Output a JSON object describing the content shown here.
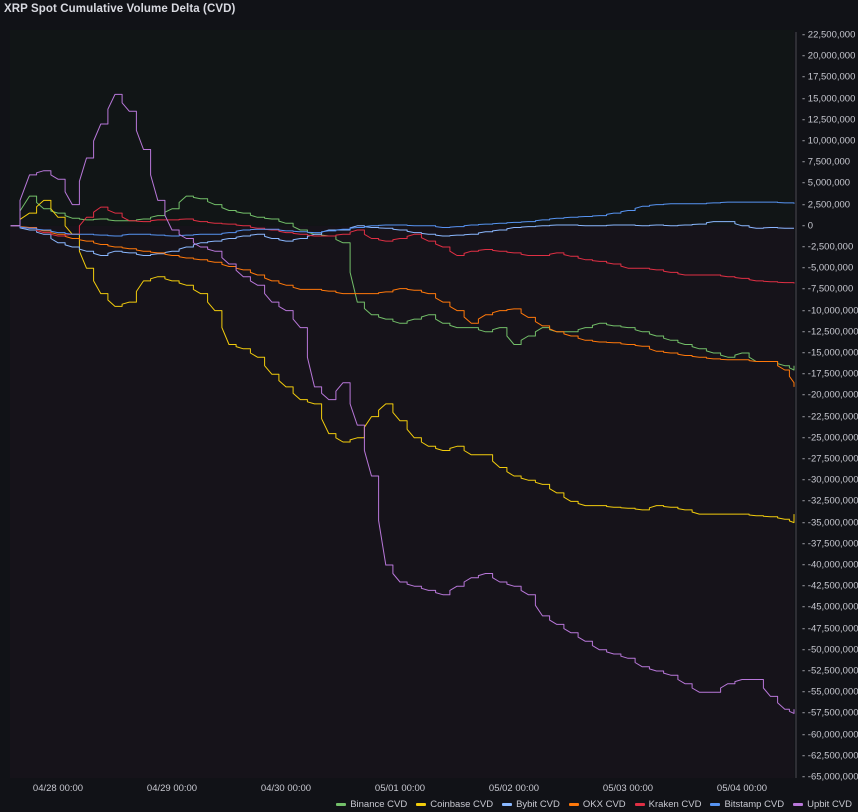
{
  "title": "XRP Spot Cumulative Volume Delta (CVD)",
  "colors": {
    "background": "#111217",
    "plot_above_zero": "#111516",
    "plot_below_zero": "#16131a",
    "axis": "#4a4b52"
  },
  "chart_data": {
    "type": "line",
    "title": "XRP Spot Cumulative Volume Delta (CVD)",
    "xlabel": "",
    "ylabel": "",
    "ylim": [
      -65000000,
      22500000
    ],
    "y_ticks": [
      "22,500,000",
      "20,000,000",
      "17,500,000",
      "15,000,000",
      "12,500,000",
      "10,000,000",
      "7,500,000",
      "5,000,000",
      "2,500,000",
      "0",
      "-2,500,000",
      "-5,000,000",
      "-7,500,000",
      "-10,000,000",
      "-12,500,000",
      "-15,000,000",
      "-17,500,000",
      "-20,000,000",
      "-22,500,000",
      "-25,000,000",
      "-27,500,000",
      "-30,000,000",
      "-32,500,000",
      "-35,000,000",
      "-37,500,000",
      "-40,000,000",
      "-42,500,000",
      "-45,000,000",
      "-47,500,000",
      "-50,000,000",
      "-52,500,000",
      "-55,000,000",
      "-57,500,000",
      "-60,000,000",
      "-62,500,000",
      "-65,000,000"
    ],
    "x_ticks": [
      "04/28 00:00",
      "04/29 00:00",
      "04/30 00:00",
      "05/01 00:00",
      "05/02 00:00",
      "05/03 00:00",
      "05/04 00:00"
    ],
    "x_unit": "hours since 04/28 00:00",
    "x": [
      -10,
      -6,
      -3,
      0,
      3,
      6,
      9,
      12,
      15,
      18,
      21,
      24,
      27,
      30,
      33,
      36,
      39,
      42,
      45,
      48,
      51,
      54,
      57,
      60,
      63,
      66,
      69,
      72,
      75,
      78,
      81,
      84,
      87,
      90,
      93,
      96,
      99,
      102,
      105,
      108,
      111,
      114,
      117,
      120,
      123,
      126,
      129,
      132,
      135,
      138,
      141,
      144,
      147,
      150,
      153,
      156,
      160
    ],
    "series": [
      {
        "name": "Binance CVD",
        "color": "#73bf69",
        "values": [
          0,
          3500000,
          2000000,
          1500000,
          900000,
          700000,
          800000,
          600000,
          600000,
          800000,
          1200000,
          2000000,
          3500000,
          3200000,
          2500000,
          1800000,
          1500000,
          1000000,
          800000,
          300000,
          -500000,
          -1000000,
          -1200000,
          -2000000,
          -9000000,
          -10500000,
          -11000000,
          -11500000,
          -11000000,
          -10500000,
          -11500000,
          -12000000,
          -12000000,
          -12500000,
          -12000000,
          -14000000,
          -13000000,
          -12000000,
          -12500000,
          -12500000,
          -12000000,
          -11500000,
          -11800000,
          -12000000,
          -12500000,
          -13000000,
          -13500000,
          -14000000,
          -14500000,
          -15000000,
          -15500000,
          -15000000,
          -16000000,
          -16000000,
          -16500000,
          -17000000,
          -16500000
        ]
      },
      {
        "name": "Coinbase CVD",
        "color": "#f2cc0c",
        "values": [
          0,
          1500000,
          3000000,
          1000000,
          -1000000,
          -5000000,
          -8000000,
          -9500000,
          -9000000,
          -6500000,
          -6000000,
          -6500000,
          -7000000,
          -8000000,
          -10000000,
          -14000000,
          -14500000,
          -15500000,
          -17500000,
          -19000000,
          -20500000,
          -21000000,
          -24500000,
          -25500000,
          -25000000,
          -22500000,
          -21000000,
          -23000000,
          -25000000,
          -26000000,
          -26500000,
          -26000000,
          -27000000,
          -27000000,
          -28500000,
          -29500000,
          -30000000,
          -30500000,
          -31500000,
          -32500000,
          -33000000,
          -33000000,
          -33200000,
          -33300000,
          -33500000,
          -33000000,
          -33200000,
          -33500000,
          -34000000,
          -34000000,
          -34000000,
          -34000000,
          -34200000,
          -34300000,
          -34600000,
          -35000000,
          -34000000
        ]
      },
      {
        "name": "Bybit CVD",
        "color": "#8ab8ff",
        "values": [
          0,
          -500000,
          -1000000,
          -2000000,
          -2500000,
          -3000000,
          -3500000,
          -3000000,
          -3200000,
          -3500000,
          -3300000,
          -3000000,
          -2500000,
          -2000000,
          -1800000,
          -1500000,
          -1200000,
          -1000000,
          -1500000,
          -1800000,
          -1500000,
          -1000000,
          -500000,
          -500000,
          0,
          -200000,
          -300000,
          -500000,
          -800000,
          -1000000,
          -1200000,
          -1100000,
          -1000000,
          -700000,
          -500000,
          -200000,
          -100000,
          0,
          100000,
          100000,
          0,
          0,
          100000,
          100000,
          0,
          100000,
          0,
          100000,
          200000,
          500000,
          500000,
          0,
          -300000,
          -200000,
          -300000,
          -300000,
          -300000
        ]
      },
      {
        "name": "OKX CVD",
        "color": "#ff780a",
        "values": [
          0,
          -200000,
          -600000,
          -1000000,
          -1500000,
          -1800000,
          -2200000,
          -2500000,
          -2700000,
          -3000000,
          -3200000,
          -3500000,
          -3800000,
          -4000000,
          -4300000,
          -4800000,
          -5200000,
          -5800000,
          -6500000,
          -7000000,
          -7500000,
          -7500000,
          -7700000,
          -8000000,
          -8000000,
          -8000000,
          -7800000,
          -7400000,
          -7600000,
          -8000000,
          -9000000,
          -10000000,
          -11500000,
          -10500000,
          -10000000,
          -9800000,
          -10800000,
          -11800000,
          -12500000,
          -13000000,
          -13500000,
          -13700000,
          -13800000,
          -14000000,
          -14200000,
          -14800000,
          -15000000,
          -15300000,
          -15500000,
          -15700000,
          -15800000,
          -15800000,
          -16000000,
          -16000000,
          -17000000,
          -18500000,
          -19000000
        ]
      },
      {
        "name": "Kraken CVD",
        "color": "#e02f44",
        "values": [
          0,
          -300000,
          -800000,
          -1200000,
          -1000000,
          1000000,
          2200000,
          1500000,
          600000,
          500000,
          700000,
          700000,
          800000,
          500000,
          300000,
          200000,
          0,
          -300000,
          -500000,
          -800000,
          -1000000,
          -1200000,
          -1200000,
          -1000000,
          -500000,
          -1500000,
          -1800000,
          -1500000,
          -1000000,
          -1800000,
          -2500000,
          -3500000,
          -3000000,
          -2800000,
          -3000000,
          -3200000,
          -3500000,
          -3500000,
          -3200000,
          -3600000,
          -4000000,
          -4200000,
          -4500000,
          -5000000,
          -5000000,
          -5200000,
          -5500000,
          -5800000,
          -5800000,
          -5800000,
          -6000000,
          -6200000,
          -6500000,
          -6600000,
          -6700000,
          -6700000,
          -6800000
        ]
      },
      {
        "name": "Bitstamp CVD",
        "color": "#5794f2",
        "values": [
          0,
          -300000,
          -500000,
          -800000,
          -1000000,
          -1000000,
          -1100000,
          -1200000,
          -1000000,
          -1000000,
          -1100000,
          -1200000,
          -1100000,
          -1000000,
          -1000000,
          -800000,
          -500000,
          -400000,
          -400000,
          -600000,
          -700000,
          -800000,
          -600000,
          -400000,
          -200000,
          0,
          100000,
          100000,
          0,
          0,
          -200000,
          -100000,
          100000,
          200000,
          300000,
          400000,
          500000,
          700000,
          900000,
          1000000,
          1100000,
          1200000,
          1500000,
          1800000,
          2300000,
          2500000,
          2600000,
          2600000,
          2600000,
          2700000,
          2800000,
          2800000,
          2800000,
          2800000,
          2700000,
          2700000,
          2600000
        ]
      },
      {
        "name": "Upbit CVD",
        "color": "#b877d9",
        "values": [
          0,
          6000000,
          6500000,
          5500000,
          2500000,
          8000000,
          12000000,
          15500000,
          13500000,
          9000000,
          3000000,
          -500000,
          -1500000,
          -2500000,
          -3000000,
          -4500000,
          -6000000,
          -7000000,
          -9000000,
          -10000000,
          -12000000,
          -19000000,
          -20500000,
          -18500000,
          -23500000,
          -29500000,
          -40000000,
          -42000000,
          -42500000,
          -43000000,
          -43500000,
          -42500000,
          -41500000,
          -41000000,
          -42000000,
          -42500000,
          -43500000,
          -46000000,
          -47000000,
          -48000000,
          -49000000,
          -50000000,
          -50500000,
          -51000000,
          -52000000,
          -52500000,
          -53000000,
          -54000000,
          -55000000,
          -55000000,
          -54000000,
          -53500000,
          -53500000,
          -55500000,
          -57000000,
          -57500000,
          -57000000
        ]
      }
    ],
    "grid": false,
    "legend_position": "bottom-right"
  },
  "legend": [
    {
      "label": "Binance CVD",
      "color": "#73bf69"
    },
    {
      "label": "Coinbase CVD",
      "color": "#f2cc0c"
    },
    {
      "label": "Bybit CVD",
      "color": "#8ab8ff"
    },
    {
      "label": "OKX CVD",
      "color": "#ff780a"
    },
    {
      "label": "Kraken CVD",
      "color": "#e02f44"
    },
    {
      "label": "Bitstamp CVD",
      "color": "#5794f2"
    },
    {
      "label": "Upbit CVD",
      "color": "#b877d9"
    }
  ]
}
